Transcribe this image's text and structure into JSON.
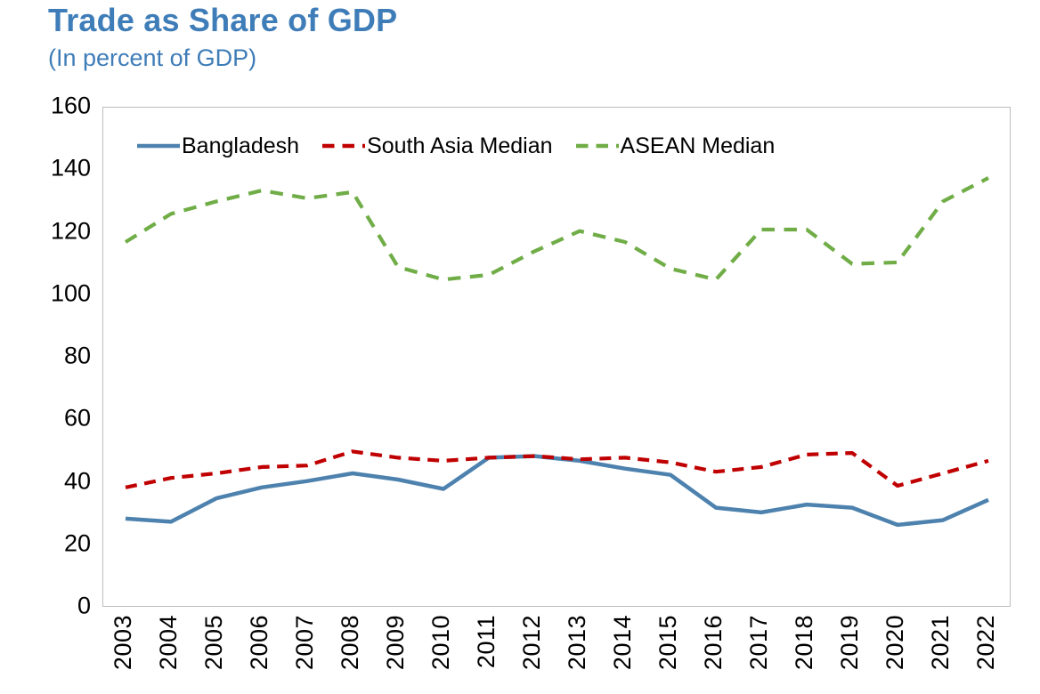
{
  "colors": {
    "title_text": "#3F7DB8",
    "subtitle_text": "#3F7DB8",
    "axis_text": "#000000",
    "legend_text": "#000000",
    "plot_border": "#BDBDBD",
    "bangladesh_line": "#4E82AE",
    "south_asia_line": "#C00000",
    "asean_line": "#70AD47"
  },
  "chart_data": {
    "type": "line",
    "title": "Trade as Share of GDP",
    "subtitle": "(In percent of GDP)",
    "xlabel": "",
    "ylabel": "",
    "ylim": [
      0,
      160
    ],
    "yticks": [
      0,
      20,
      40,
      60,
      80,
      100,
      120,
      140,
      160
    ],
    "grid": false,
    "legend_position": "top-inside-horizontal",
    "categories": [
      "2003",
      "2004",
      "2005",
      "2006",
      "2007",
      "2008",
      "2009",
      "2010",
      "2011",
      "2012",
      "2013",
      "2014",
      "2015",
      "2016",
      "2017",
      "2018",
      "2019",
      "2020",
      "2021",
      "2022"
    ],
    "series": [
      {
        "name": "Bangladesh",
        "color": "#4E82AE",
        "line_style": "solid",
        "values": [
          28.5,
          27.5,
          35,
          38.5,
          40.5,
          43,
          41,
          38,
          48,
          48.5,
          47,
          44.5,
          42.5,
          32,
          30.5,
          33,
          32,
          26.5,
          28,
          34.5
        ]
      },
      {
        "name": "South Asia Median",
        "color": "#C00000",
        "line_style": "dashed",
        "values": [
          38.5,
          41.5,
          43,
          45,
          45.5,
          50,
          48,
          47,
          48,
          48.5,
          47.5,
          48,
          46.5,
          43.5,
          45,
          49,
          49.5,
          39,
          43,
          47
        ]
      },
      {
        "name": "ASEAN Median",
        "color": "#70AD47",
        "line_style": "dashed",
        "values": [
          117,
          126,
          130,
          133.5,
          131,
          133,
          109,
          105,
          106.5,
          114,
          120.5,
          117,
          108.5,
          105,
          121,
          121,
          110,
          110.5,
          130,
          137.5
        ]
      }
    ]
  }
}
